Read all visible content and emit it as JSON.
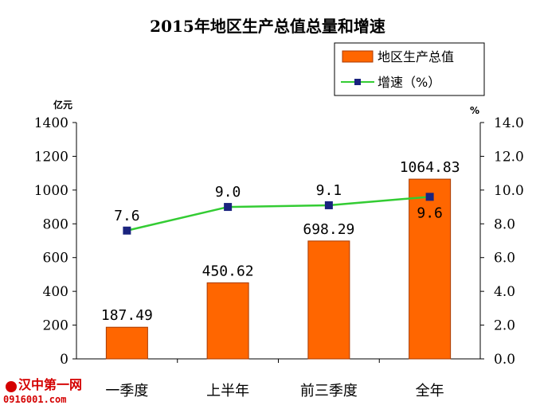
{
  "chart_data": {
    "type": "bar+line",
    "title": "2015年地区生产总值总量和增速",
    "categories": [
      "一季度",
      "上半年",
      "前三季度",
      "全年"
    ],
    "series": [
      {
        "name": "地区生产总值",
        "type": "bar",
        "axis": "left",
        "values": [
          187.49,
          450.62,
          698.29,
          1064.83
        ],
        "labels": [
          "187.49",
          "450.62",
          "698.29",
          "1064.83"
        ]
      },
      {
        "name": "增速（%）",
        "type": "line",
        "axis": "right",
        "values": [
          7.6,
          9.0,
          9.1,
          9.6
        ],
        "labels": [
          "7.6",
          "9.0",
          "9.1",
          "9.6"
        ]
      }
    ],
    "y_left": {
      "unit": "亿元",
      "min": 0,
      "max": 1400,
      "ticks": [
        "0",
        "200",
        "400",
        "600",
        "800",
        "1000",
        "1200",
        "1400"
      ]
    },
    "y_right": {
      "unit": "%",
      "min": 0,
      "max": 14,
      "ticks": [
        "0.0",
        "2.0",
        "4.0",
        "6.0",
        "8.0",
        "10.0",
        "12.0",
        "14.0"
      ]
    },
    "legend_position": "top-right",
    "colors": {
      "bar": "#ff6600",
      "bar_border": "#a83a00",
      "line": "#33cc33",
      "marker": "#1a237e"
    }
  },
  "watermark": {
    "text": "汉中第一网",
    "url": "0916001.com"
  }
}
